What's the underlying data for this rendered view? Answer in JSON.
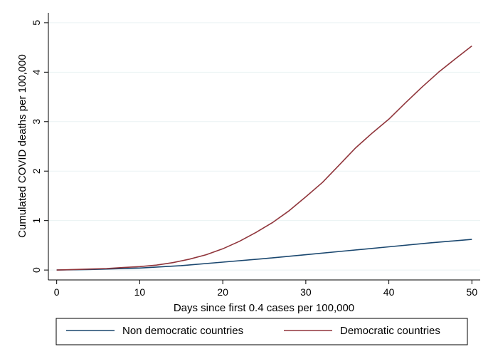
{
  "chart_data": {
    "type": "line",
    "title": "",
    "xlabel": "Days since first 0.4 cases per 100,000",
    "ylabel": "Cumulated COVID deaths per 100,000",
    "xlim": [
      -1,
      51
    ],
    "ylim": [
      -0.2,
      5.2
    ],
    "x_ticks": [
      0,
      10,
      20,
      30,
      40,
      50
    ],
    "y_ticks": [
      0,
      1,
      2,
      3,
      4,
      5
    ],
    "grid": true,
    "legend_position": "bottom",
    "series": [
      {
        "name": "Non democratic countries",
        "color": "#1a476f",
        "x": [
          0,
          5,
          10,
          15,
          20,
          25,
          30,
          35,
          40,
          45,
          50
        ],
        "y": [
          0.0,
          0.015,
          0.04,
          0.09,
          0.16,
          0.23,
          0.31,
          0.39,
          0.47,
          0.55,
          0.62
        ]
      },
      {
        "name": "Democratic countries",
        "color": "#90353b",
        "x": [
          0,
          2,
          4,
          6,
          8,
          10,
          12,
          14,
          16,
          18,
          20,
          22,
          24,
          26,
          28,
          30,
          32,
          34,
          36,
          38,
          40,
          42,
          44,
          46,
          48,
          50
        ],
        "y": [
          0.0,
          0.01,
          0.02,
          0.03,
          0.05,
          0.07,
          0.1,
          0.15,
          0.22,
          0.31,
          0.43,
          0.58,
          0.76,
          0.96,
          1.2,
          1.48,
          1.77,
          2.12,
          2.47,
          2.77,
          3.05,
          3.38,
          3.7,
          4.0,
          4.27,
          4.53
        ]
      }
    ]
  }
}
